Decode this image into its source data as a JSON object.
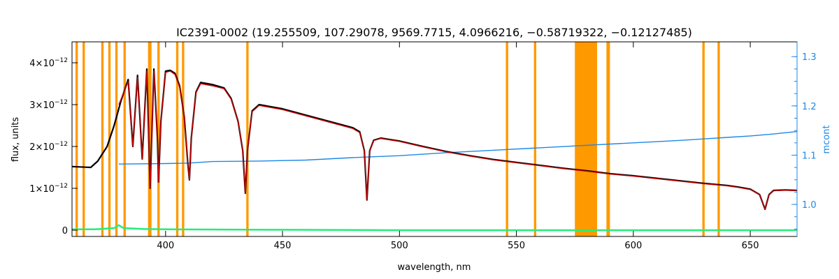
{
  "chart_data": {
    "type": "line",
    "title": "IC2391-0002    (19.255509, 107.29078, 9569.7715, 4.0966216, −0.58719322, −0.12127485)",
    "xlabel": "wavelength, nm",
    "ylabel_left": "flux, units",
    "ylabel_right": "mcont",
    "xlim": [
      360,
      670
    ],
    "ylim_left": [
      -0.15,
      4.5
    ],
    "ylim_right": [
      0.935,
      1.33
    ],
    "x_ticks": [
      400,
      450,
      500,
      550,
      600,
      650
    ],
    "y_ticks_left": [
      {
        "value": 0,
        "mant": "0",
        "exp": ""
      },
      {
        "value": 1,
        "mant": "1×10",
        "exp": "−12"
      },
      {
        "value": 2,
        "mant": "2×10",
        "exp": "−12"
      },
      {
        "value": 3,
        "mant": "3×10",
        "exp": "−12"
      },
      {
        "value": 4,
        "mant": "4×10",
        "exp": "−12"
      }
    ],
    "y_ticks_right": [
      1.0,
      1.1,
      1.2,
      1.3
    ],
    "flux_unit_exponent": -12,
    "masked_regions": [
      [
        361.5,
        362.5
      ],
      [
        364.5,
        365.5
      ],
      [
        372.5,
        373.5
      ],
      [
        375.5,
        376.5
      ],
      [
        378.5,
        379.5
      ],
      [
        382.0,
        383.0
      ],
      [
        392.5,
        394.0
      ],
      [
        396.5,
        397.5
      ],
      [
        404.5,
        405.5
      ],
      [
        407.0,
        408.0
      ],
      [
        434.5,
        435.5
      ],
      [
        545.5,
        546.5
      ],
      [
        557.5,
        558.5
      ],
      [
        575.0,
        584.5
      ],
      [
        588.5,
        590.0
      ],
      [
        629.5,
        630.5
      ],
      [
        636.0,
        637.0
      ]
    ],
    "series": [
      {
        "role": "observed",
        "color": "#000000",
        "x": [
          360,
          368,
          371,
          375,
          378,
          381,
          384,
          386,
          388,
          390,
          392,
          393.4,
          395,
          396.5,
          397,
          398,
          400,
          402,
          404,
          406,
          408,
          409.5,
          410.2,
          411,
          413,
          415,
          420,
          425,
          428,
          431,
          433,
          434.1,
          435,
          437,
          440,
          450,
          460,
          470,
          480,
          483,
          485,
          486.1,
          487.3,
          489,
          492,
          500,
          510,
          520,
          530,
          540,
          550,
          560,
          570,
          580,
          590,
          600,
          610,
          620,
          630,
          640,
          645,
          650,
          654,
          656.3,
          658,
          660,
          665,
          670
        ],
        "y": [
          1.52,
          1.5,
          1.65,
          2.0,
          2.5,
          3.1,
          3.6,
          2.0,
          3.7,
          1.7,
          3.85,
          1.0,
          3.85,
          2.2,
          1.15,
          2.6,
          3.8,
          3.82,
          3.75,
          3.45,
          2.7,
          1.6,
          1.2,
          2.2,
          3.3,
          3.53,
          3.48,
          3.4,
          3.15,
          2.6,
          1.9,
          0.88,
          1.9,
          2.85,
          3.0,
          2.9,
          2.75,
          2.6,
          2.45,
          2.35,
          1.9,
          0.72,
          1.9,
          2.15,
          2.2,
          2.13,
          2.0,
          1.88,
          1.78,
          1.69,
          1.62,
          1.55,
          1.48,
          1.42,
          1.35,
          1.3,
          1.24,
          1.18,
          1.12,
          1.07,
          1.03,
          0.98,
          0.85,
          0.5,
          0.85,
          0.95,
          0.96,
          0.95
        ]
      },
      {
        "role": "model",
        "color": "#cc0000",
        "x": [
          380,
          384,
          386,
          388,
          390,
          392,
          393.4,
          395,
          396.5,
          397,
          398,
          400,
          402,
          404,
          406,
          408,
          409.5,
          410.2,
          411,
          413,
          415,
          420,
          425,
          428,
          431,
          433,
          434.1,
          435,
          437,
          440,
          450,
          460,
          470,
          480,
          483,
          485,
          486.1,
          487.3,
          489,
          492,
          500,
          510,
          520,
          530,
          540,
          550,
          560,
          570,
          580,
          590,
          600,
          610,
          620,
          630,
          640,
          645,
          650,
          654,
          656.3,
          658,
          660,
          665,
          670
        ],
        "y": [
          3.0,
          3.55,
          2.0,
          3.65,
          1.7,
          3.8,
          1.0,
          3.8,
          2.2,
          1.15,
          2.6,
          3.77,
          3.8,
          3.72,
          3.42,
          2.7,
          1.6,
          1.2,
          2.2,
          3.28,
          3.5,
          3.45,
          3.38,
          3.13,
          2.6,
          1.9,
          0.88,
          1.9,
          2.83,
          2.98,
          2.88,
          2.73,
          2.58,
          2.43,
          2.33,
          1.9,
          0.72,
          1.9,
          2.14,
          2.19,
          2.12,
          1.99,
          1.87,
          1.77,
          1.68,
          1.61,
          1.54,
          1.47,
          1.41,
          1.34,
          1.29,
          1.23,
          1.17,
          1.11,
          1.06,
          1.02,
          0.97,
          0.85,
          0.5,
          0.85,
          0.94,
          0.955,
          0.945
        ]
      },
      {
        "role": "residual",
        "color": "#22ee77",
        "x": [
          360,
          370,
          378,
          380,
          382,
          390,
          400,
          450,
          500,
          550,
          600,
          650,
          670
        ],
        "y": [
          0.02,
          0.02,
          0.05,
          0.12,
          0.05,
          0.03,
          0.02,
          0.01,
          0.0,
          0.0,
          0.0,
          0.0,
          0.0
        ]
      },
      {
        "role": "continuum",
        "axis": "right",
        "color": "#1e88e5",
        "x": [
          380,
          400,
          410,
          420,
          440,
          460,
          480,
          500,
          520,
          540,
          560,
          580,
          600,
          620,
          640,
          650,
          660,
          670
        ],
        "y": [
          1.082,
          1.083,
          1.084,
          1.087,
          1.088,
          1.09,
          1.095,
          1.099,
          1.105,
          1.11,
          1.115,
          1.12,
          1.125,
          1.13,
          1.136,
          1.139,
          1.143,
          1.148
        ]
      }
    ]
  }
}
